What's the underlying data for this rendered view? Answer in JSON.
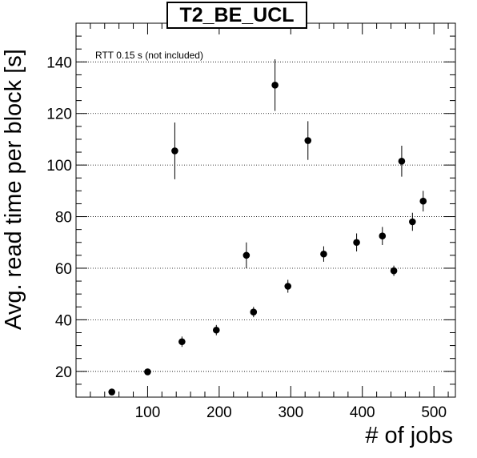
{
  "chart_data": {
    "type": "scatter",
    "title": "T2_BE_UCL",
    "xlabel": "# of jobs",
    "ylabel": "Avg. read time per block [s]",
    "annotation": "RTT 0.15 s (not included)",
    "xlim": [
      0,
      530
    ],
    "ylim": [
      10,
      155
    ],
    "xticks": [
      100,
      200,
      300,
      400,
      500
    ],
    "yticks": [
      20,
      40,
      60,
      80,
      100,
      120,
      140
    ],
    "grid": {
      "x": false,
      "y": true
    },
    "colors": {
      "marker": "#000000",
      "grid": "#000000"
    },
    "points": [
      {
        "x": 50,
        "y": 12,
        "err": 0.5
      },
      {
        "x": 100,
        "y": 19.8,
        "err": 1
      },
      {
        "x": 138,
        "y": 105.5,
        "err": 11
      },
      {
        "x": 148,
        "y": 31.5,
        "err": 2
      },
      {
        "x": 196,
        "y": 36,
        "err": 2
      },
      {
        "x": 238,
        "y": 65,
        "err": 5
      },
      {
        "x": 248,
        "y": 43,
        "err": 2
      },
      {
        "x": 278,
        "y": 131,
        "err": 10
      },
      {
        "x": 296,
        "y": 53,
        "err": 2.5
      },
      {
        "x": 324,
        "y": 109.5,
        "err": 7.5
      },
      {
        "x": 346,
        "y": 65.5,
        "err": 3
      },
      {
        "x": 392,
        "y": 70,
        "err": 3.5
      },
      {
        "x": 428,
        "y": 72.5,
        "err": 3.5
      },
      {
        "x": 444,
        "y": 59,
        "err": 2
      },
      {
        "x": 455,
        "y": 101.5,
        "err": 6
      },
      {
        "x": 470,
        "y": 78,
        "err": 3.5
      },
      {
        "x": 485,
        "y": 86,
        "err": 4
      }
    ]
  }
}
